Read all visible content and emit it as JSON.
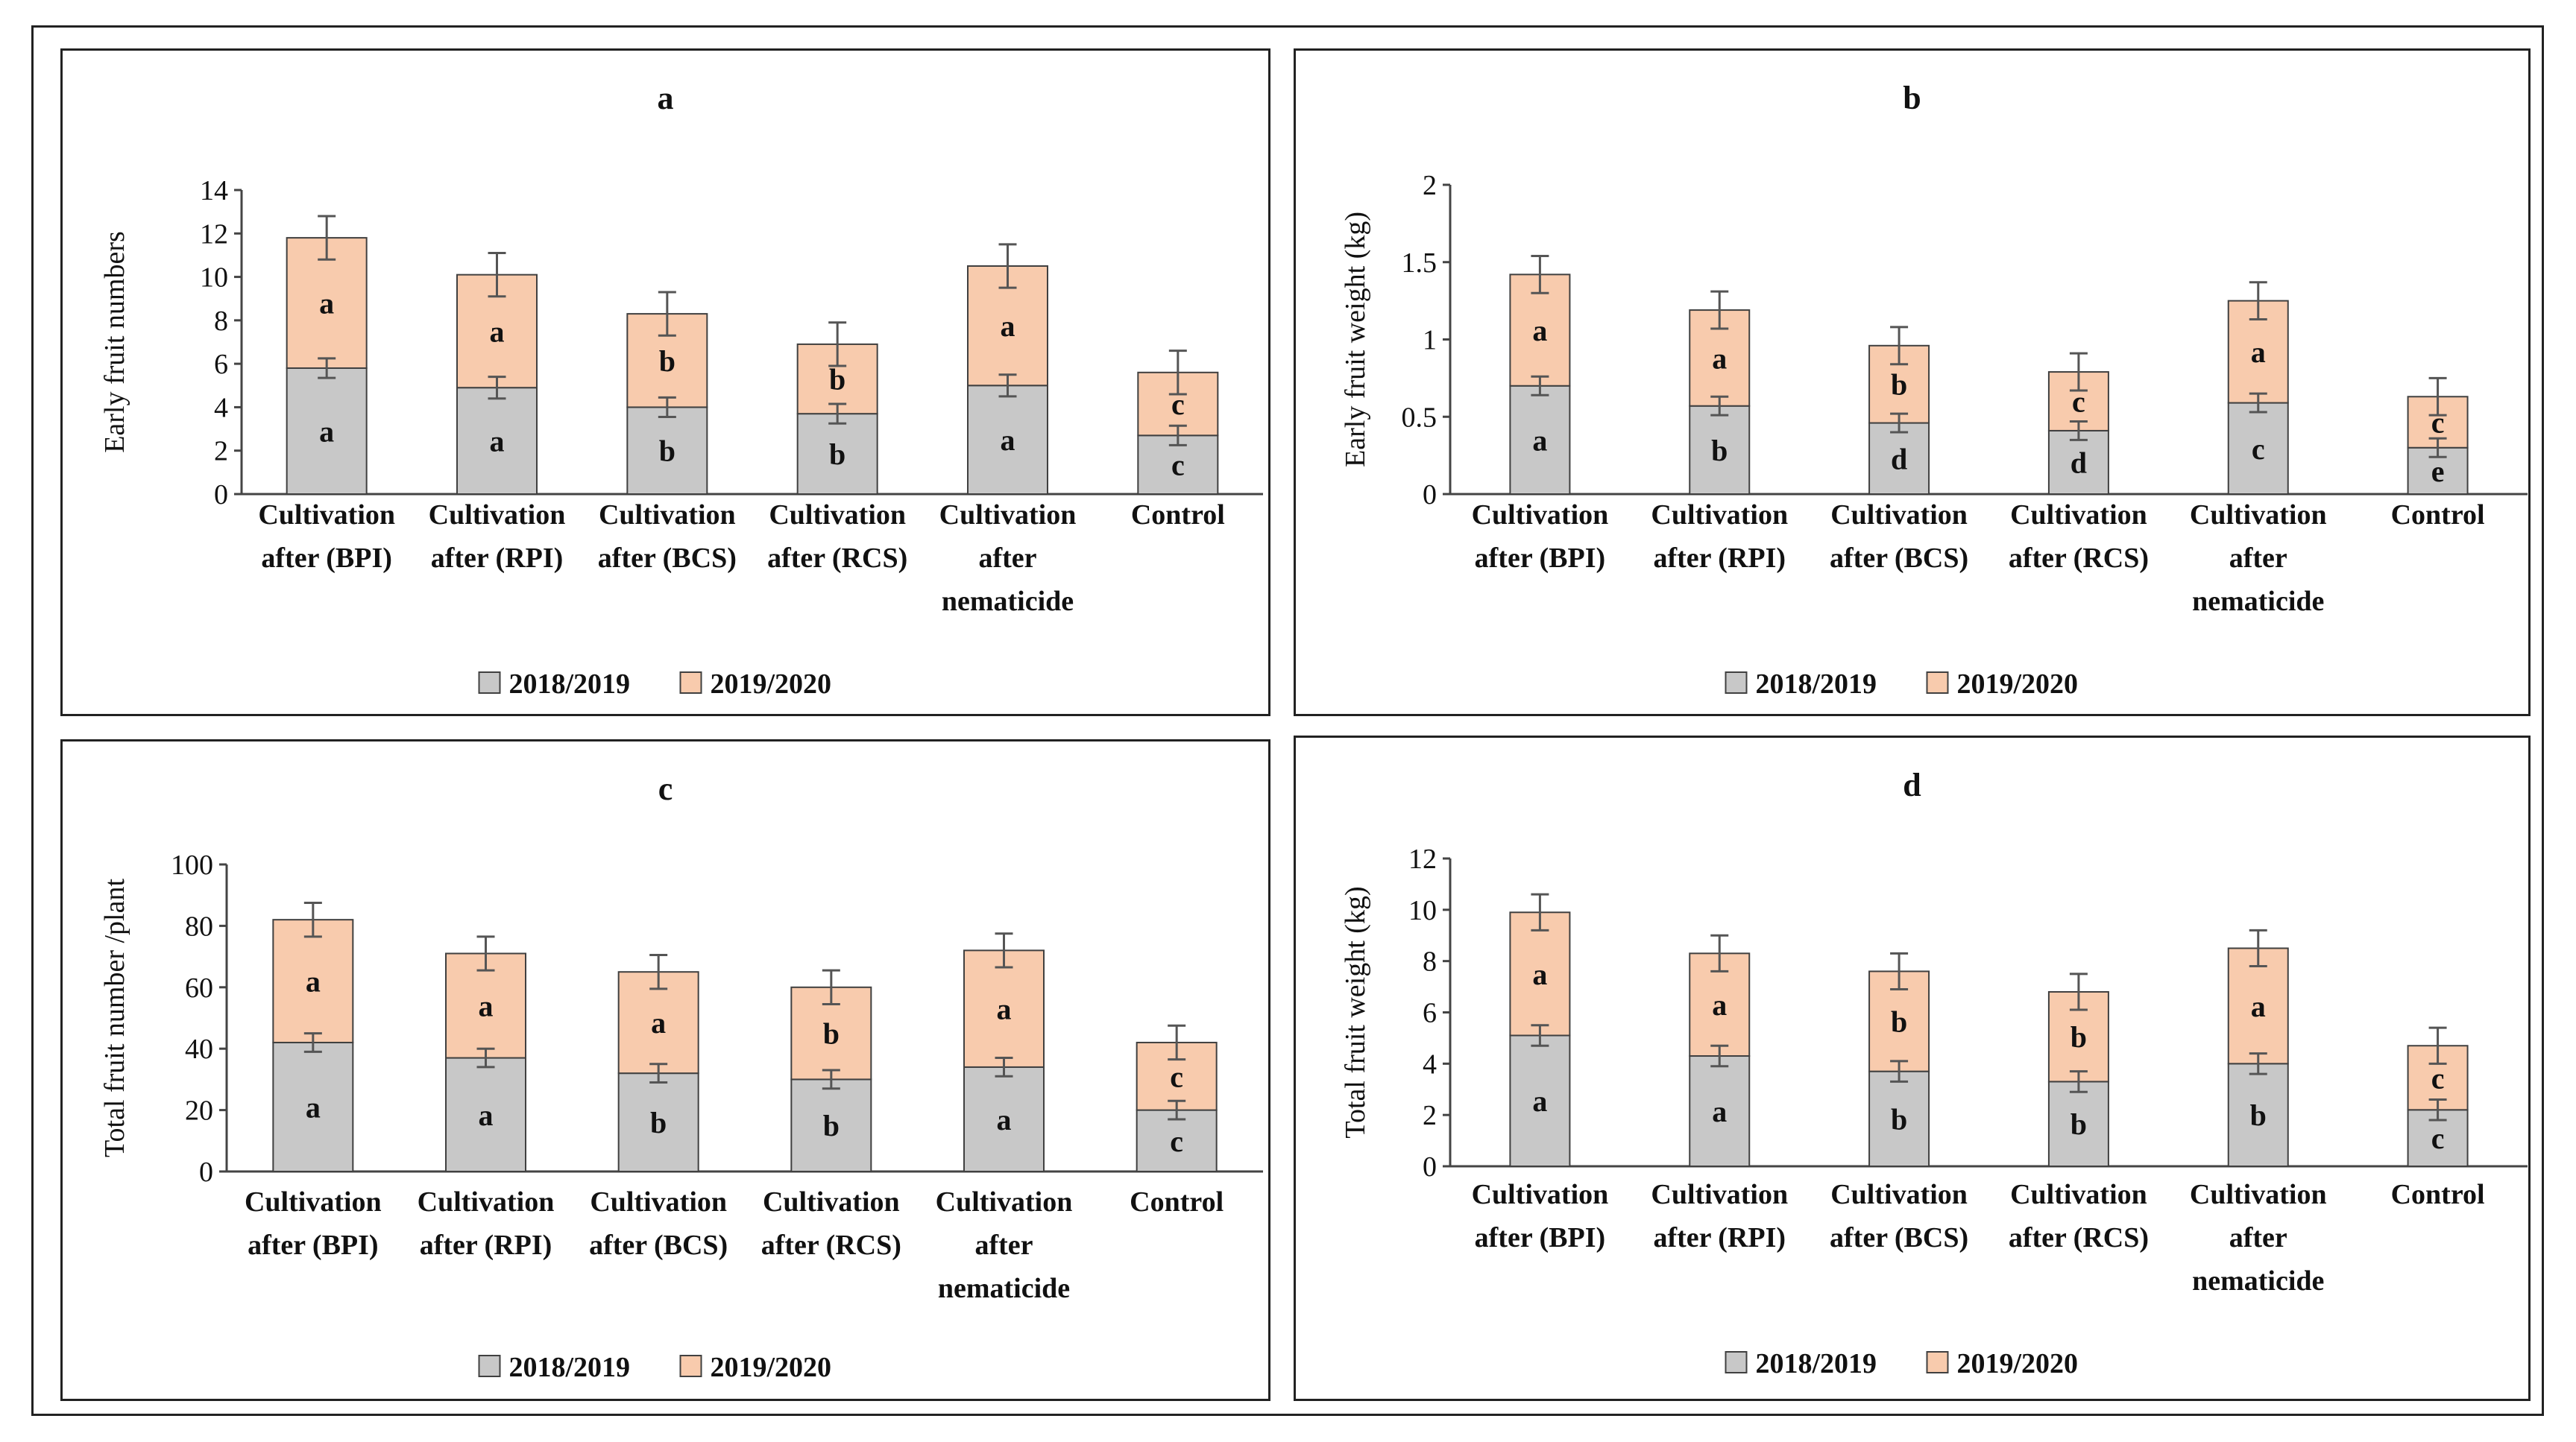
{
  "legend": {
    "series_2018": "2018/2019",
    "series_2019": "2019/2020"
  },
  "colors": {
    "series_2018": "#c8c8c8",
    "series_2019": "#f8cbad",
    "bar_outline": "#404040",
    "error_bar": "#555555",
    "axis": "#444444",
    "frame": "#222222"
  },
  "chart_data": [
    {
      "type": "bar",
      "stacked": true,
      "title": "a",
      "xlabel": "",
      "ylabel": "Early fruit numbers",
      "ylim": [
        0,
        14
      ],
      "yticks": [
        "0",
        "2",
        "4",
        "6",
        "8",
        "10",
        "12",
        "14"
      ],
      "grid": false,
      "legend_position": "bottom",
      "categories": [
        [
          "Cultivation",
          "after (BPI)"
        ],
        [
          "Cultivation",
          "after (RPI)"
        ],
        [
          "Cultivation",
          "after (BCS)"
        ],
        [
          "Cultivation",
          "after (RCS)"
        ],
        [
          "Cultivation",
          "after",
          "nematicide"
        ],
        [
          "Control"
        ]
      ],
      "series": [
        {
          "name": "2018/2019",
          "values": [
            5.8,
            4.9,
            4.0,
            3.7,
            5.0,
            2.7
          ],
          "errors": [
            0.45,
            0.5,
            0.45,
            0.45,
            0.5,
            0.45
          ],
          "letters": [
            "a",
            "a",
            "b",
            "b",
            "a",
            "c"
          ]
        },
        {
          "name": "2019/2020",
          "values": [
            6.0,
            5.2,
            4.3,
            3.2,
            5.5,
            2.9
          ],
          "errors": [
            1.0,
            1.0,
            1.0,
            1.0,
            1.0,
            1.0
          ],
          "letters": [
            "a",
            "a",
            "b",
            "b",
            "a",
            "c"
          ]
        }
      ]
    },
    {
      "type": "bar",
      "stacked": true,
      "title": "b",
      "xlabel": "",
      "ylabel": "Early fruit weight (kg)",
      "ylim": [
        0,
        2
      ],
      "yticks": [
        "0",
        "0.5",
        "1",
        "1.5",
        "2"
      ],
      "grid": false,
      "legend_position": "bottom",
      "categories": [
        [
          "Cultivation",
          "after (BPI)"
        ],
        [
          "Cultivation",
          "after (RPI)"
        ],
        [
          "Cultivation",
          "after (BCS)"
        ],
        [
          "Cultivation",
          "after (RCS)"
        ],
        [
          "Cultivation",
          "after",
          "nematicide"
        ],
        [
          "Control"
        ]
      ],
      "series": [
        {
          "name": "2018/2019",
          "values": [
            0.7,
            0.57,
            0.46,
            0.41,
            0.59,
            0.3
          ],
          "errors": [
            0.06,
            0.06,
            0.06,
            0.06,
            0.06,
            0.06
          ],
          "letters": [
            "a",
            "b",
            "d",
            "d",
            "c",
            "e"
          ]
        },
        {
          "name": "2019/2020",
          "values": [
            0.72,
            0.62,
            0.5,
            0.38,
            0.66,
            0.33
          ],
          "errors": [
            0.12,
            0.12,
            0.12,
            0.12,
            0.12,
            0.12
          ],
          "letters": [
            "a",
            "a",
            "b",
            "c",
            "a",
            "c"
          ]
        }
      ]
    },
    {
      "type": "bar",
      "stacked": true,
      "title": "c",
      "xlabel": "",
      "ylabel": "Total fruit number /plant",
      "ylim": [
        0,
        100
      ],
      "yticks": [
        "0",
        "20",
        "40",
        "60",
        "80",
        "100"
      ],
      "grid": false,
      "legend_position": "bottom",
      "categories": [
        [
          "Cultivation",
          "after (BPI)"
        ],
        [
          "Cultivation",
          "after (RPI)"
        ],
        [
          "Cultivation",
          "after (BCS)"
        ],
        [
          "Cultivation",
          "after (RCS)"
        ],
        [
          "Cultivation",
          "after",
          "nematicide"
        ],
        [
          "Control"
        ]
      ],
      "series": [
        {
          "name": "2018/2019",
          "values": [
            42,
            37,
            32,
            30,
            34,
            20
          ],
          "errors": [
            3,
            3,
            3,
            3,
            3,
            3
          ],
          "letters": [
            "a",
            "a",
            "b",
            "b",
            "a",
            "c"
          ]
        },
        {
          "name": "2019/2020",
          "values": [
            40,
            34,
            33,
            30,
            38,
            22
          ],
          "errors": [
            5.5,
            5.5,
            5.5,
            5.5,
            5.5,
            5.5
          ],
          "letters": [
            "a",
            "a",
            "a",
            "b",
            "a",
            "c"
          ]
        }
      ]
    },
    {
      "type": "bar",
      "stacked": true,
      "title": "d",
      "xlabel": "",
      "ylabel": "Total fruit weight (kg)",
      "ylim": [
        0,
        12
      ],
      "yticks": [
        "0",
        "2",
        "4",
        "6",
        "8",
        "10",
        "12"
      ],
      "grid": false,
      "legend_position": "bottom",
      "categories": [
        [
          "Cultivation",
          "after (BPI)"
        ],
        [
          "Cultivation",
          "after (RPI)"
        ],
        [
          "Cultivation",
          "after (BCS)"
        ],
        [
          "Cultivation",
          "after (RCS)"
        ],
        [
          "Cultivation",
          "after",
          "nematicide"
        ],
        [
          "Control"
        ]
      ],
      "series": [
        {
          "name": "2018/2019",
          "values": [
            5.1,
            4.3,
            3.7,
            3.3,
            4.0,
            2.2
          ],
          "errors": [
            0.4,
            0.4,
            0.4,
            0.4,
            0.4,
            0.4
          ],
          "letters": [
            "a",
            "a",
            "b",
            "b",
            "b",
            "c"
          ]
        },
        {
          "name": "2019/2020",
          "values": [
            4.8,
            4.0,
            3.9,
            3.5,
            4.5,
            2.5
          ],
          "errors": [
            0.7,
            0.7,
            0.7,
            0.7,
            0.7,
            0.7
          ],
          "letters": [
            "a",
            "a",
            "b",
            "b",
            "a",
            "c"
          ]
        }
      ]
    }
  ]
}
